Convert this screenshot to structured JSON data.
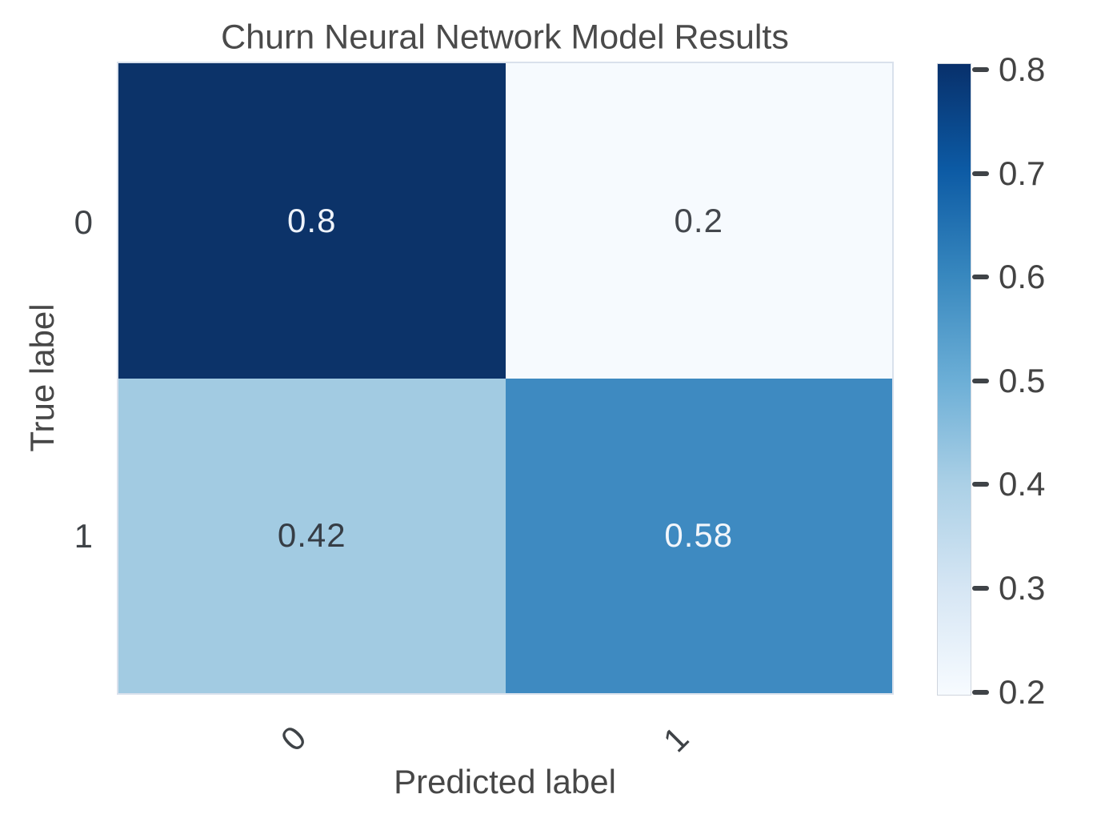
{
  "title": "Churn Neural Network Model Results",
  "colors": {
    "background": "#ffffff",
    "title_text": "#4a4a4a",
    "axis_text": "#474747",
    "tick_text": "#3f4347"
  },
  "chart_data": {
    "type": "heatmap",
    "title": "Churn Neural Network Model Results",
    "xlabel": "Predicted label",
    "ylabel": "True label",
    "x_tick_labels": [
      "0",
      "1"
    ],
    "y_tick_labels": [
      "0",
      "1"
    ],
    "x_ticks_rotation_deg": -45,
    "grid": false,
    "colormap": "Blues",
    "matrix": {
      "row_labels": [
        "0",
        "1"
      ],
      "col_labels": [
        "0",
        "1"
      ],
      "values": [
        [
          0.8,
          0.2
        ],
        [
          0.42,
          0.58
        ]
      ]
    },
    "cells": [
      {
        "row": 0,
        "col": 0,
        "value": "0.8",
        "bg": "#0c3369",
        "fg": "#eef3fa"
      },
      {
        "row": 0,
        "col": 1,
        "value": "0.2",
        "bg": "#f6fafe",
        "fg": "#43474d"
      },
      {
        "row": 1,
        "col": 0,
        "value": "0.42",
        "bg": "#a2cbe2",
        "fg": "#363d45"
      },
      {
        "row": 1,
        "col": 1,
        "value": "0.58",
        "bg": "#3e8ac1",
        "fg": "#f2f6fb"
      }
    ],
    "colorbar": {
      "min": 0.2,
      "max": 0.8,
      "position": "right",
      "ticks": [
        "0.8",
        "0.7",
        "0.6",
        "0.5",
        "0.4",
        "0.3",
        "0.2"
      ],
      "gradient": [
        "#08306b",
        "#0c5aa4",
        "#3787be",
        "#6baed6",
        "#abd0e6",
        "#d6e6f4",
        "#f7fbff"
      ]
    }
  }
}
